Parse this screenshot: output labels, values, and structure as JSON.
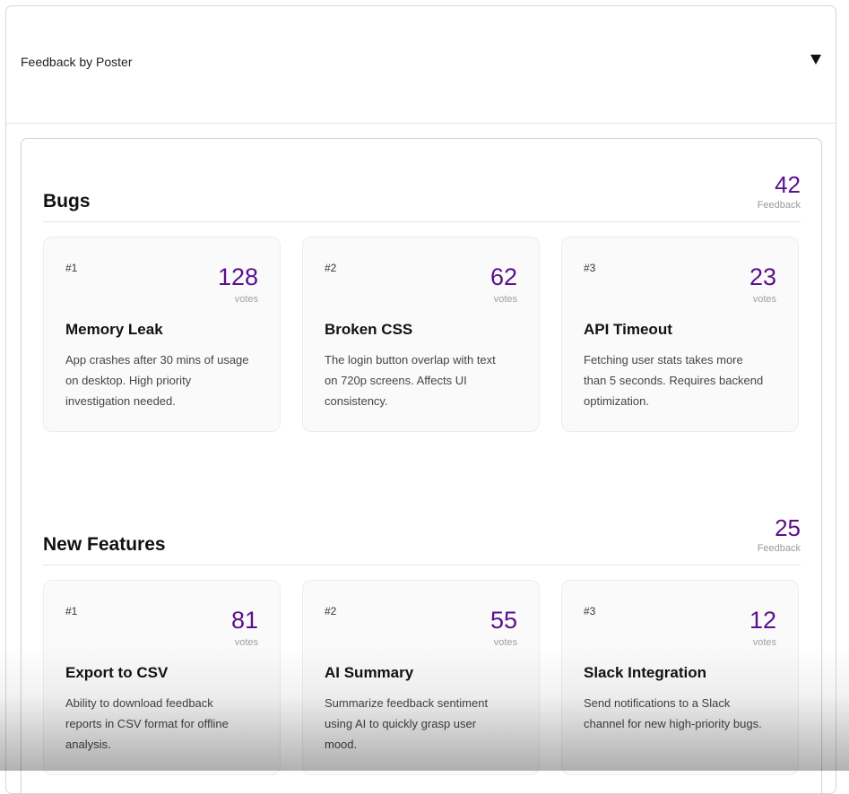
{
  "accordion": {
    "title": "Feedback by Poster"
  },
  "sections": [
    {
      "title": "Bugs",
      "count": "42",
      "count_label": "Feedback",
      "cards": [
        {
          "rank": "#1",
          "votes": "128",
          "votes_label": "votes",
          "title": "Memory Leak",
          "description": "App crashes after 30 mins of usage on desktop. High priority investigation needed."
        },
        {
          "rank": "#2",
          "votes": "62",
          "votes_label": "votes",
          "title": "Broken CSS",
          "description": "The login button overlap with text on 720p screens. Affects UI consistency."
        },
        {
          "rank": "#3",
          "votes": "23",
          "votes_label": "votes",
          "title": "API Timeout",
          "description": "Fetching user stats takes more than 5 seconds. Requires backend optimization."
        }
      ]
    },
    {
      "title": "New Features",
      "count": "25",
      "count_label": "Feedback",
      "cards": [
        {
          "rank": "#1",
          "votes": "81",
          "votes_label": "votes",
          "title": "Export to CSV",
          "description": "Ability to download feedback reports in CSV format for offline analysis."
        },
        {
          "rank": "#2",
          "votes": "55",
          "votes_label": "votes",
          "title": "AI Summary",
          "description": "Summarize feedback sentiment using AI to quickly grasp user mood."
        },
        {
          "rank": "#3",
          "votes": "12",
          "votes_label": "votes",
          "title": "Slack Integration",
          "description": "Send notifications to a Slack channel for new high-priority bugs."
        }
      ]
    }
  ],
  "colors": {
    "accent": "#5b0f8c",
    "card_background": "#fafafa",
    "border": "#d5d5d5"
  },
  "icons": {
    "toggle": "triangle-down-icon"
  }
}
